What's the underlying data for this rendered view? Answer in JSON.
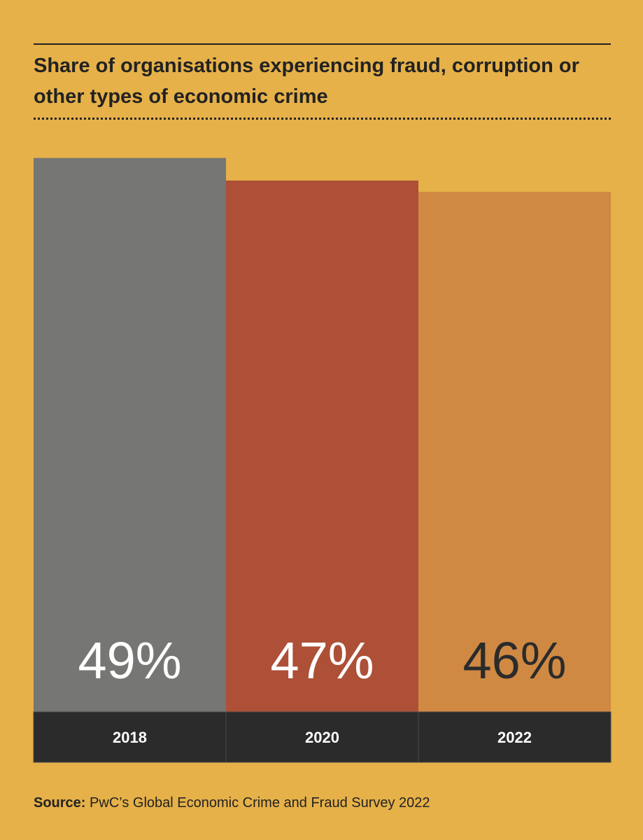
{
  "chart_data": {
    "type": "bar",
    "title": "Share of organisations experiencing fraud, corruption or other types of economic crime",
    "categories": [
      "2018",
      "2020",
      "2022"
    ],
    "values": [
      49,
      47,
      46
    ],
    "value_labels": [
      "49%",
      "47%",
      "46%"
    ],
    "unit": "%",
    "bar_colors": [
      "#767674",
      "#AD5037",
      "#D08943"
    ],
    "label_colors": [
      "#FFFFFF",
      "#FFFFFF",
      "#2B2B2B"
    ],
    "category_band_color": "#2B2B2B",
    "category_label_color": "#FFFFFF",
    "grid": false,
    "legend": "none"
  },
  "source": {
    "label": "Source:",
    "text": "PwC’s Global Economic Crime and Fraud Survey 2022"
  },
  "colors": {
    "background": "#E6B149",
    "text": "#222222"
  }
}
